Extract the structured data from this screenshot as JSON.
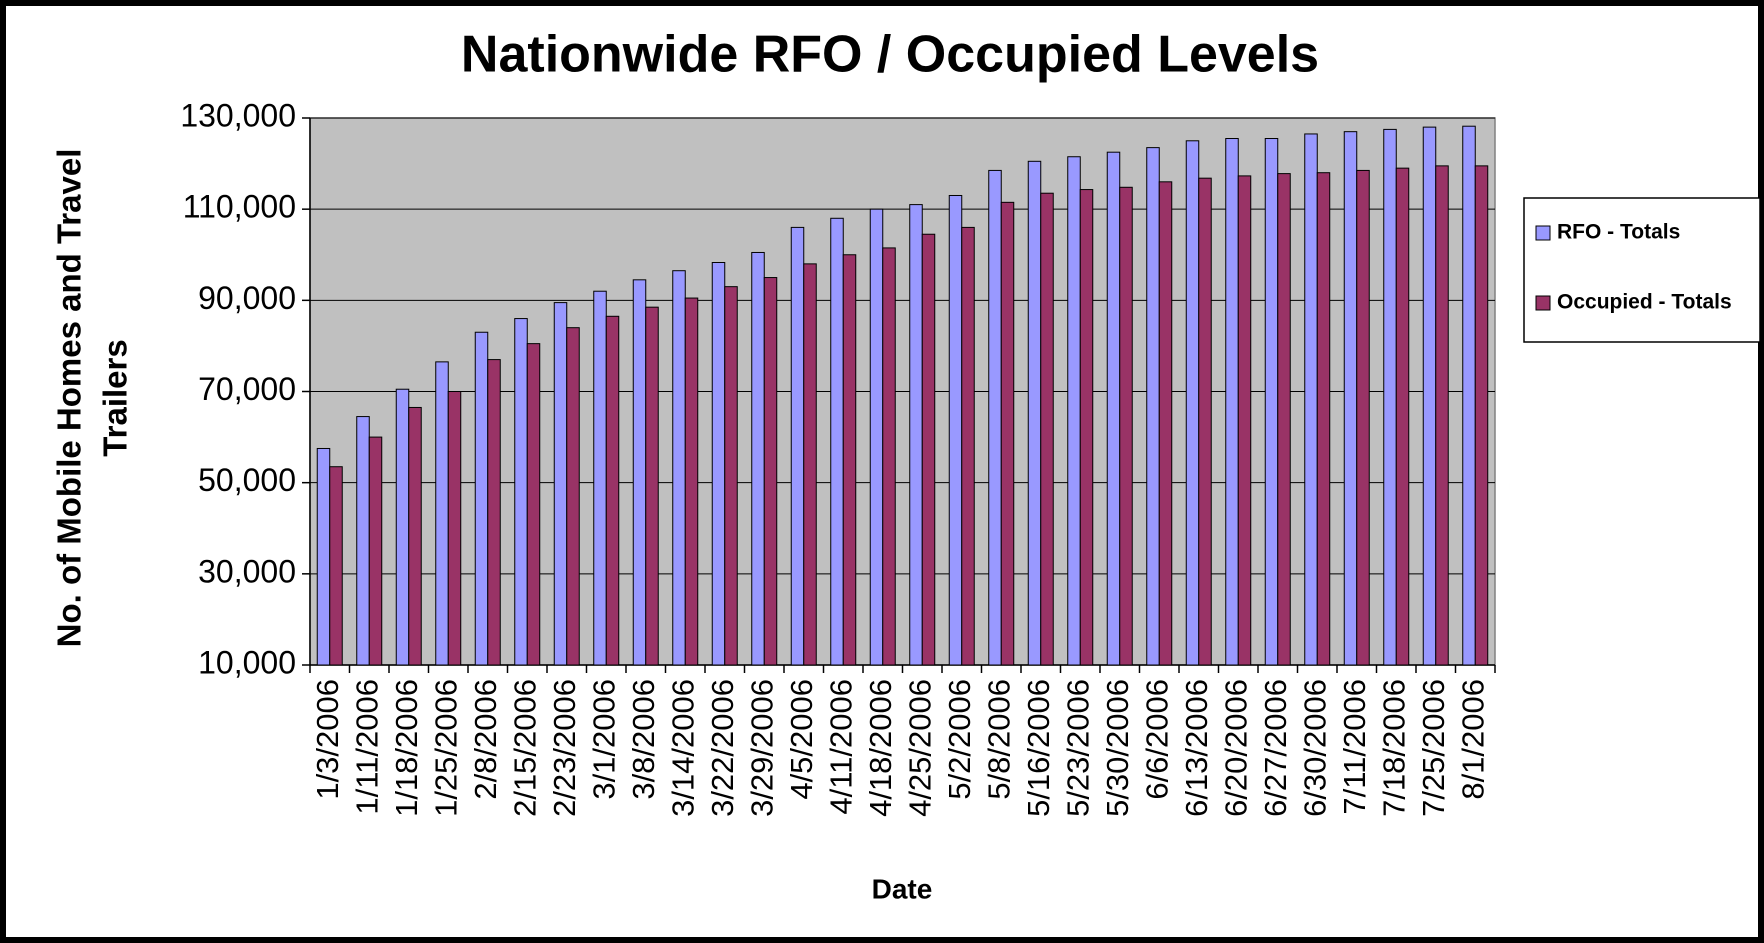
{
  "chart_data": {
    "type": "bar",
    "title": "Nationwide RFO / Occupied Levels",
    "xlabel": "Date",
    "ylabel": [
      "No. of Mobile Homes and Travel",
      "Trailers"
    ],
    "categories": [
      "1/3/2006",
      "1/11/2006",
      "1/18/2006",
      "1/25/2006",
      "2/8/2006",
      "2/15/2006",
      "2/23/2006",
      "3/1/2006",
      "3/8/2006",
      "3/14/2006",
      "3/22/2006",
      "3/29/2006",
      "4/5/2006",
      "4/11/2006",
      "4/18/2006",
      "4/25/2006",
      "5/2/2006",
      "5/8/2006",
      "5/16/2006",
      "5/23/2006",
      "5/30/2006",
      "6/6/2006",
      "6/13/2006",
      "6/20/2006",
      "6/27/2006",
      "6/30/2006",
      "7/11/2006",
      "7/18/2006",
      "7/25/2006",
      "8/1/2006"
    ],
    "series": [
      {
        "name": "RFO - Totals",
        "color": "#9999ff",
        "values": [
          57500,
          64500,
          70500,
          76500,
          83000,
          86000,
          89500,
          92000,
          94500,
          96500,
          98300,
          100500,
          106000,
          108000,
          110000,
          111000,
          113000,
          118500,
          120500,
          121500,
          122500,
          123500,
          125000,
          125500,
          125500,
          126500,
          127000,
          127500,
          128000,
          128200
        ]
      },
      {
        "name": "Occupied - Totals",
        "color": "#993366",
        "values": [
          53500,
          60000,
          66500,
          70000,
          77000,
          80500,
          84000,
          86500,
          88500,
          90500,
          93000,
          95000,
          98000,
          100000,
          101500,
          104500,
          106000,
          111500,
          113500,
          114300,
          114800,
          116000,
          116800,
          117300,
          117800,
          118000,
          118500,
          119000,
          119500,
          119500
        ]
      }
    ],
    "ylim": [
      10000,
      130000
    ],
    "yticks": [
      {
        "value": 10000,
        "label": "10,000"
      },
      {
        "value": 30000,
        "label": "30,000"
      },
      {
        "value": 50000,
        "label": "50,000"
      },
      {
        "value": 70000,
        "label": "70,000"
      },
      {
        "value": 90000,
        "label": "90,000"
      },
      {
        "value": 110000,
        "label": "110,000"
      },
      {
        "value": 130000,
        "label": "130,000"
      }
    ],
    "grid": true,
    "plot_background": "#c0c0c0",
    "legend": "right"
  }
}
